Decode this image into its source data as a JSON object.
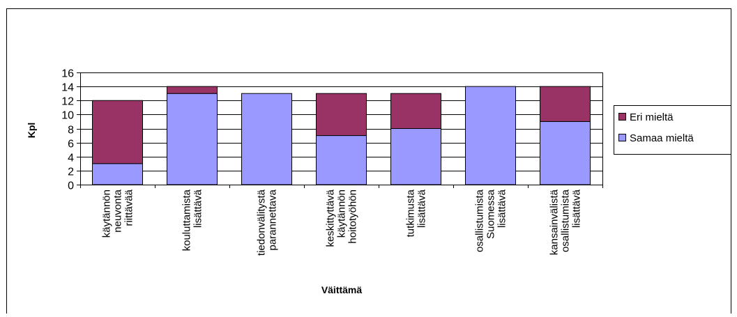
{
  "chart_data": {
    "type": "bar",
    "stacked": true,
    "title": "",
    "xlabel": "Väittämä",
    "ylabel": "Kpl",
    "ylim": [
      0,
      16
    ],
    "ytick_step": 2,
    "grid": true,
    "legend_position": "right",
    "categories": [
      [
        "käytännön",
        "neuvonta",
        "riittävää"
      ],
      [
        "kouluttamista",
        "lisättävä"
      ],
      [
        "tiedonvälitystä",
        "parannettava"
      ],
      [
        "keskittyttävä",
        "käytännön",
        "hoitotyöhön"
      ],
      [
        "tutkimusta",
        "lisättävä"
      ],
      [
        "osallistumista",
        "Suomessa",
        "lisättävä"
      ],
      [
        "kansainvälistä",
        "osallistumista",
        "lisättävä"
      ]
    ],
    "series": [
      {
        "name": "Samaa mieltä",
        "color": "#9999FF",
        "values": [
          3,
          13,
          13,
          7,
          8,
          14,
          9
        ]
      },
      {
        "name": "Eri mieltä",
        "color": "#993366",
        "values": [
          9,
          1,
          0,
          6,
          5,
          0,
          5
        ]
      }
    ],
    "legend_order": [
      1,
      0
    ]
  }
}
